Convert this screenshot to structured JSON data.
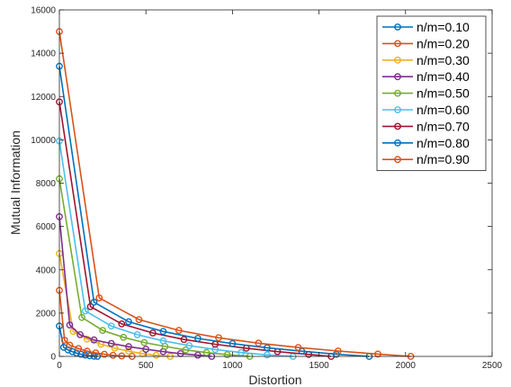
{
  "chart_data": {
    "type": "line",
    "title": "",
    "xlabel": "Distortion",
    "ylabel": "Mutual Information",
    "xlim": [
      0,
      2500
    ],
    "ylim": [
      0,
      16000
    ],
    "x_ticks": [
      0,
      500,
      1000,
      1500,
      2000,
      2500
    ],
    "y_ticks": [
      0,
      2000,
      4000,
      6000,
      8000,
      10000,
      12000,
      14000,
      16000
    ],
    "grid": false,
    "legend_position": "top-right",
    "series": [
      {
        "name": "n/m=0.10",
        "color": "#0072BD",
        "x": [
          0,
          25,
          50,
          75,
          100,
          125,
          150,
          175,
          200,
          220
        ],
        "y": [
          1400,
          420,
          300,
          220,
          150,
          100,
          60,
          30,
          10,
          0
        ]
      },
      {
        "name": "n/m=0.20",
        "color": "#D95319",
        "x": [
          0,
          30,
          60,
          110,
          160,
          210,
          260,
          310,
          360,
          420
        ],
        "y": [
          3050,
          750,
          520,
          360,
          240,
          160,
          100,
          50,
          20,
          0
        ]
      },
      {
        "name": "n/m=0.30",
        "color": "#EDB120",
        "x": [
          0,
          80,
          160,
          240,
          320,
          400,
          480,
          560,
          640
        ],
        "y": [
          4750,
          1150,
          800,
          560,
          380,
          240,
          130,
          50,
          0
        ]
      },
      {
        "name": "n/m=0.40",
        "color": "#7E2F8E",
        "x": [
          0,
          60,
          120,
          200,
          300,
          400,
          500,
          600,
          700,
          800,
          880
        ],
        "y": [
          6450,
          1450,
          1000,
          760,
          600,
          450,
          330,
          220,
          130,
          60,
          0
        ]
      },
      {
        "name": "n/m=0.50",
        "color": "#77AC30",
        "x": [
          0,
          130,
          250,
          370,
          490,
          610,
          730,
          850,
          970,
          1100
        ],
        "y": [
          8200,
          1800,
          1200,
          880,
          640,
          460,
          300,
          180,
          80,
          0
        ]
      },
      {
        "name": "n/m=0.60",
        "color": "#4DBEEE",
        "x": [
          0,
          150,
          300,
          450,
          600,
          750,
          900,
          1050,
          1200,
          1350
        ],
        "y": [
          9950,
          2100,
          1400,
          1000,
          720,
          500,
          320,
          180,
          70,
          0
        ]
      },
      {
        "name": "n/m=0.70",
        "color": "#A2142F",
        "x": [
          0,
          180,
          360,
          540,
          720,
          900,
          1080,
          1260,
          1440,
          1570
        ],
        "y": [
          11750,
          2300,
          1500,
          1080,
          780,
          560,
          380,
          220,
          90,
          0
        ]
      },
      {
        "name": "n/m=0.80",
        "color": "#0072BD",
        "x": [
          0,
          200,
          400,
          600,
          800,
          1000,
          1200,
          1400,
          1600,
          1790
        ],
        "y": [
          13400,
          2500,
          1600,
          1150,
          830,
          590,
          400,
          240,
          100,
          0
        ]
      },
      {
        "name": "n/m=0.90",
        "color": "#D95319",
        "x": [
          0,
          230,
          460,
          690,
          920,
          1150,
          1380,
          1610,
          1840,
          2030
        ],
        "y": [
          15000,
          2700,
          1700,
          1200,
          860,
          610,
          410,
          250,
          110,
          0
        ]
      }
    ]
  }
}
